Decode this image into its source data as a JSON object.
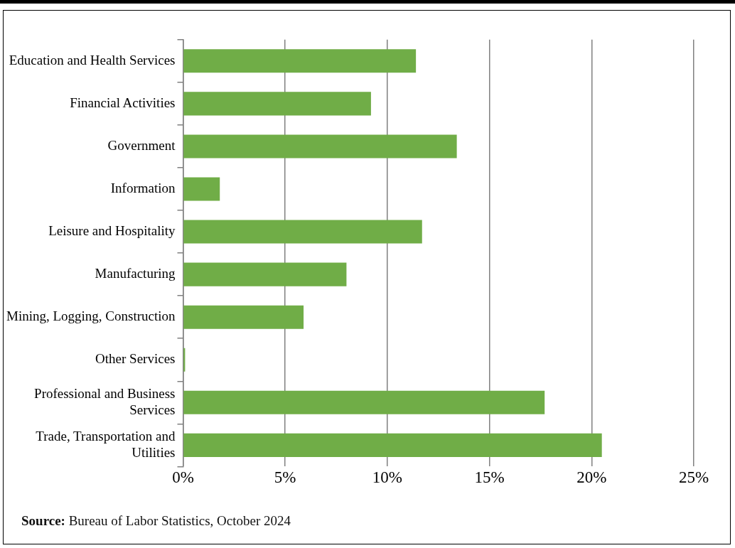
{
  "chart_data": {
    "type": "bar",
    "orientation": "horizontal",
    "categories": [
      "Education and Health Services",
      "Financial Activities",
      "Government",
      "Information",
      "Leisure and Hospitality",
      "Manufacturing",
      "Mining, Logging, Construction",
      "Other Services",
      "Professional and Business Services",
      "Trade, Transportation and Utilities"
    ],
    "values": [
      11.4,
      9.2,
      13.4,
      1.8,
      11.7,
      8.0,
      5.9,
      0.1,
      17.7,
      20.5
    ],
    "color": "#70ad47",
    "xlim": [
      0,
      25
    ],
    "xticks": [
      {
        "value": 0,
        "label": "0%"
      },
      {
        "value": 5,
        "label": "5%"
      },
      {
        "value": 10,
        "label": "10%"
      },
      {
        "value": 15,
        "label": "15%"
      },
      {
        "value": 20,
        "label": "20%"
      },
      {
        "value": 25,
        "label": "25%"
      }
    ],
    "grid": "x",
    "legend": false,
    "annotations": [
      "Source: Bureau of Labor Statistics, October  2024"
    ]
  }
}
